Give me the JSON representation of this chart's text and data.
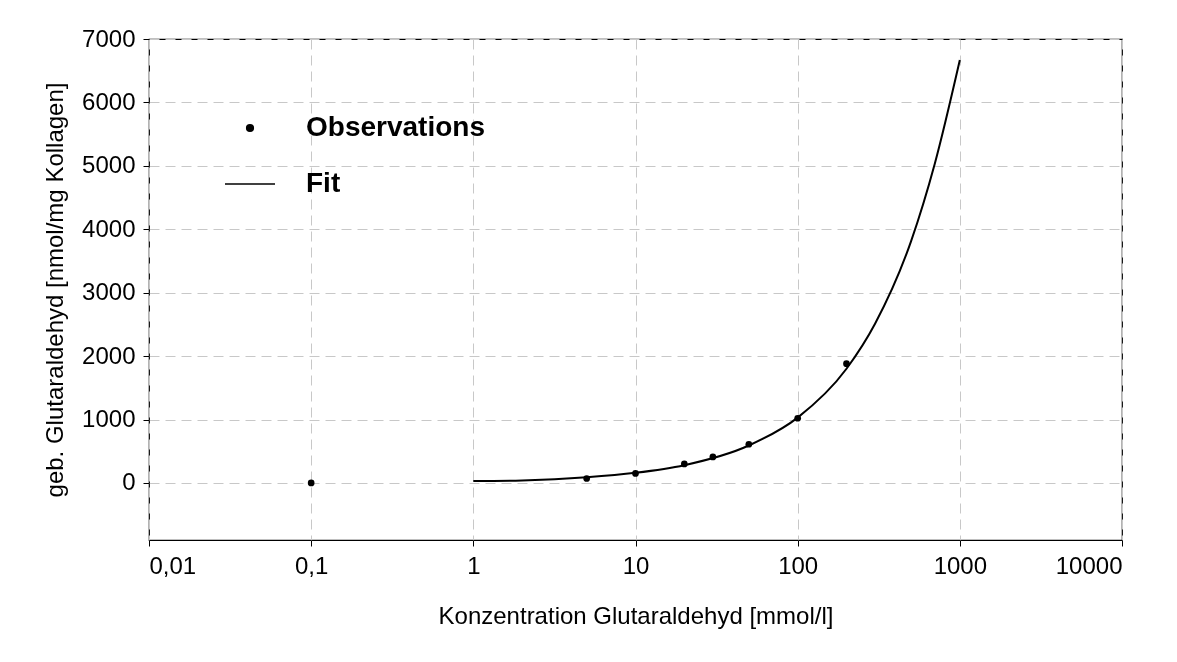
{
  "chart_data": {
    "type": "scatter",
    "xlabel": "Konzentration Glutaraldehyd [mmol/l]",
    "ylabel": "geb. Glutaraldehyd [nmol/mg Kollagen]",
    "log": "x",
    "grid": true,
    "legend": "top left",
    "xlim": [
      0.01,
      10000
    ],
    "xticks": [
      {
        "value": 0.01,
        "label": "0,01"
      },
      {
        "value": 0.1,
        "label": "0,1"
      },
      1,
      10,
      100,
      1000,
      10000
    ],
    "ylim": [
      -900,
      7000
    ],
    "yticks": [
      0,
      1000,
      2000,
      3000,
      4000,
      5000,
      6000,
      7000
    ],
    "series": [
      {
        "name": "Observations",
        "type": "scatter",
        "color": "#000000",
        "marker": "circle",
        "x": [
          0.1,
          5,
          10,
          20,
          30,
          50,
          100,
          200
        ],
        "values": [
          0,
          70,
          150,
          300,
          410,
          610,
          1020,
          1880
        ]
      },
      {
        "name": "Fit",
        "type": "line",
        "color": "#000000",
        "line_style": "solid",
        "x": [
          1,
          2,
          5,
          10,
          20,
          50,
          100,
          200,
          300,
          500,
          700,
          1000
        ],
        "values": [
          30,
          40,
          90,
          160,
          280,
          590,
          1030,
          1800,
          2510,
          3810,
          5030,
          6670
        ]
      }
    ]
  }
}
